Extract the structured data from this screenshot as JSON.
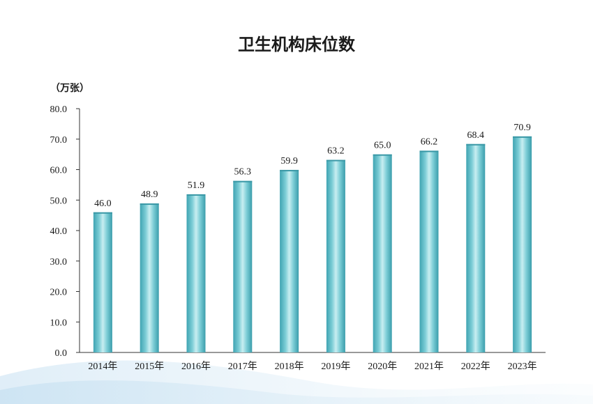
{
  "chart_data": {
    "type": "bar",
    "title": "卫生机构床位数",
    "ylabel": "（万张）",
    "xlabel": "",
    "categories": [
      "2014年",
      "2015年",
      "2016年",
      "2017年",
      "2018年",
      "2019年",
      "2020年",
      "2021年",
      "2022年",
      "2023年"
    ],
    "values": [
      46.0,
      48.9,
      51.9,
      56.3,
      59.9,
      63.2,
      65.0,
      66.2,
      68.4,
      70.9
    ],
    "value_labels": [
      "46.0",
      "48.9",
      "51.9",
      "56.3",
      "59.9",
      "63.2",
      "65.0",
      "66.2",
      "68.4",
      "70.9"
    ],
    "y_ticks": [
      "0.0",
      "10.0",
      "20.0",
      "30.0",
      "40.0",
      "50.0",
      "60.0",
      "70.0",
      "80.0"
    ],
    "ylim": [
      0,
      80
    ],
    "grid": false,
    "bar_color": "#5bb8c4"
  }
}
